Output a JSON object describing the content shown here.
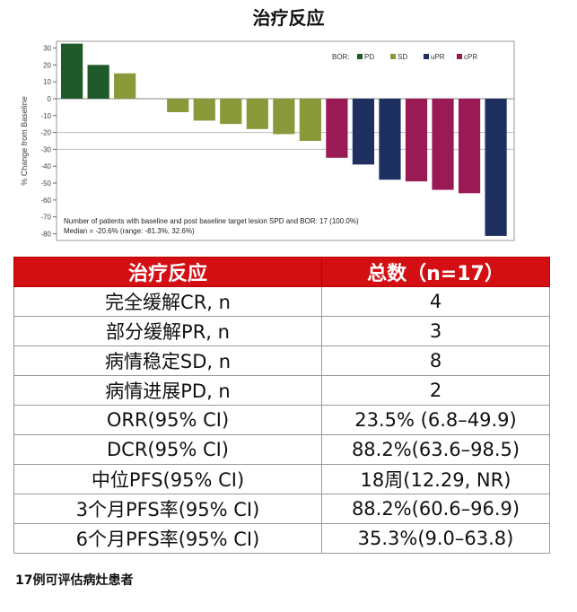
{
  "title": "治疗反应",
  "chart_data": {
    "type": "bar",
    "subtype": "waterfall",
    "ylabel": "% Change from Baseline",
    "ylim": [
      -80,
      30
    ],
    "yticks": [
      30,
      20,
      10,
      0,
      -10,
      -20,
      -30,
      -40,
      -50,
      -60,
      -70,
      -80
    ],
    "reference_lines": [
      -20,
      -30
    ],
    "legend": {
      "title": "BOR:",
      "placement": "top-right",
      "entries": [
        {
          "name": "PD",
          "color": "#1f5a2a"
        },
        {
          "name": "SD",
          "color": "#8a9a3a"
        },
        {
          "name": "uPR",
          "color": "#1e3060"
        },
        {
          "name": "cPR",
          "color": "#9a1a55"
        }
      ]
    },
    "values": [
      32.6,
      20,
      15,
      0,
      -8,
      -13,
      -15,
      -18,
      -21,
      -25,
      -35,
      -39,
      -48,
      -49,
      -54,
      -56,
      -81.3
    ],
    "bor": [
      "PD",
      "PD",
      "SD",
      "SD",
      "SD",
      "SD",
      "SD",
      "SD",
      "SD",
      "SD",
      "cPR",
      "uPR",
      "uPR",
      "cPR",
      "cPR",
      "cPR",
      "uPR"
    ],
    "annotations": [
      "Number of patients with baseline and post baseline target lesion SPD and BOR: 17 (100.0%)",
      "Median = -20.6% (range: -81.3%, 32.6%)"
    ]
  },
  "table": {
    "headers": [
      "治疗反应",
      "总数（n=17）"
    ],
    "rows": [
      [
        "完全缓解CR, n",
        "4"
      ],
      [
        "部分缓解PR, n",
        "3"
      ],
      [
        "病情稳定SD, n",
        "8"
      ],
      [
        "病情进展PD, n",
        "2"
      ],
      [
        "ORR(95% CI)",
        "23.5% (6.8–49.9)"
      ],
      [
        "DCR(95% CI)",
        "88.2%(63.6–98.5)"
      ],
      [
        "中位PFS(95% CI)",
        "18周(12.29, NR)"
      ],
      [
        "3个月PFS率(95% CI)",
        "88.2%(60.6–96.9)"
      ],
      [
        "6个月PFS率(95% CI)",
        "35.3%(9.0–63.8)"
      ]
    ]
  },
  "footer": "17例可评估病灶患者"
}
